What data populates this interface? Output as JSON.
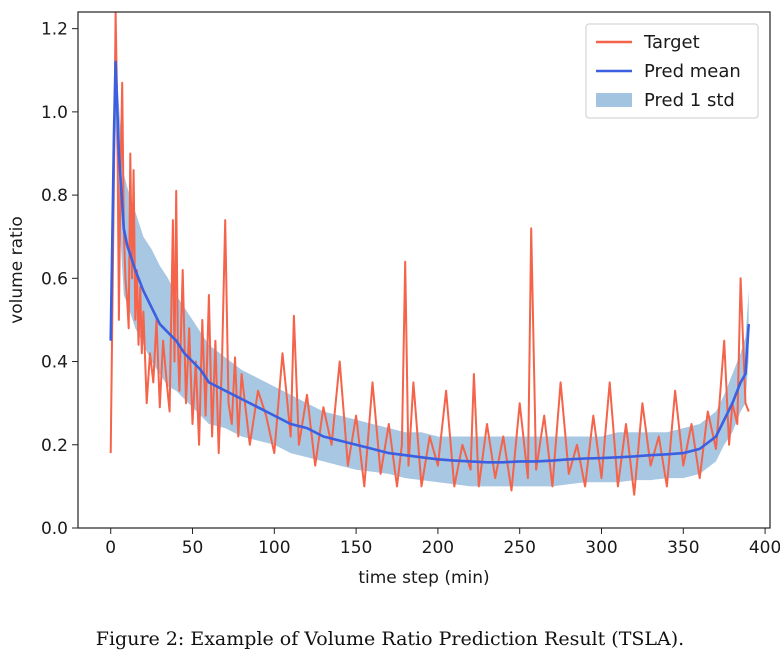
{
  "caption": "Figure 2: Example of Volume Ratio Prediction Result (TSLA).",
  "chart_data": {
    "type": "line",
    "title": "",
    "xlabel": "time step (min)",
    "ylabel": "volume ratio",
    "xlim": [
      -20,
      403
    ],
    "ylim": [
      0,
      1.24
    ],
    "xticks": [
      0,
      50,
      100,
      150,
      200,
      250,
      300,
      350,
      400
    ],
    "xtick_labels": [
      "0",
      "50",
      "100",
      "150",
      "200",
      "250",
      "300",
      "350",
      "400"
    ],
    "yticks": [
      0.0,
      0.2,
      0.4,
      0.6,
      0.8,
      1.0,
      1.2
    ],
    "ytick_labels": [
      "0.0",
      "0.2",
      "0.4",
      "0.6",
      "0.8",
      "1.0",
      "1.2"
    ],
    "legend_position": "top-right",
    "colors": {
      "target": "#f4634a",
      "pred_mean": "#3b5fe0",
      "pred_std": "#a3c4e0"
    },
    "series": [
      {
        "name": "Target",
        "kind": "line",
        "x": [
          0,
          2,
          3,
          4,
          5,
          6,
          7,
          8,
          9,
          10,
          11,
          12,
          13,
          14,
          15,
          16,
          17,
          18,
          19,
          20,
          22,
          24,
          26,
          28,
          30,
          32,
          34,
          36,
          38,
          39,
          40,
          41,
          42,
          44,
          46,
          48,
          50,
          52,
          54,
          56,
          58,
          60,
          62,
          64,
          66,
          68,
          70,
          72,
          74,
          76,
          78,
          80,
          85,
          90,
          95,
          100,
          105,
          110,
          112,
          115,
          120,
          125,
          130,
          135,
          140,
          145,
          150,
          155,
          160,
          165,
          170,
          175,
          178,
          180,
          182,
          185,
          190,
          195,
          200,
          205,
          210,
          215,
          220,
          222,
          225,
          230,
          235,
          240,
          245,
          250,
          255,
          257,
          260,
          265,
          270,
          275,
          280,
          285,
          290,
          295,
          300,
          305,
          310,
          315,
          320,
          325,
          330,
          335,
          340,
          345,
          350,
          355,
          360,
          365,
          370,
          375,
          378,
          380,
          383,
          385,
          388,
          390
        ],
        "values": [
          0.18,
          0.85,
          1.24,
          1.0,
          0.5,
          0.85,
          1.07,
          0.72,
          0.6,
          0.55,
          0.48,
          0.9,
          0.6,
          0.86,
          0.5,
          0.62,
          0.44,
          0.58,
          0.42,
          0.52,
          0.3,
          0.42,
          0.35,
          0.5,
          0.29,
          0.45,
          0.36,
          0.28,
          0.74,
          0.4,
          0.81,
          0.45,
          0.33,
          0.62,
          0.3,
          0.48,
          0.25,
          0.4,
          0.2,
          0.5,
          0.27,
          0.56,
          0.22,
          0.45,
          0.18,
          0.4,
          0.74,
          0.3,
          0.25,
          0.41,
          0.22,
          0.37,
          0.2,
          0.33,
          0.27,
          0.18,
          0.42,
          0.22,
          0.51,
          0.2,
          0.32,
          0.15,
          0.29,
          0.2,
          0.4,
          0.15,
          0.27,
          0.1,
          0.35,
          0.13,
          0.25,
          0.1,
          0.2,
          0.64,
          0.15,
          0.35,
          0.1,
          0.22,
          0.15,
          0.33,
          0.1,
          0.2,
          0.14,
          0.37,
          0.1,
          0.25,
          0.12,
          0.22,
          0.09,
          0.3,
          0.12,
          0.72,
          0.14,
          0.27,
          0.1,
          0.35,
          0.13,
          0.2,
          0.1,
          0.27,
          0.12,
          0.35,
          0.1,
          0.25,
          0.08,
          0.3,
          0.15,
          0.22,
          0.1,
          0.33,
          0.15,
          0.25,
          0.12,
          0.28,
          0.19,
          0.45,
          0.2,
          0.3,
          0.25,
          0.6,
          0.3,
          0.28
        ]
      },
      {
        "name": "Pred mean",
        "kind": "line",
        "x": [
          0,
          2,
          3,
          5,
          8,
          10,
          15,
          20,
          25,
          30,
          35,
          40,
          45,
          50,
          55,
          60,
          70,
          80,
          90,
          100,
          110,
          120,
          130,
          140,
          150,
          160,
          170,
          180,
          190,
          200,
          210,
          220,
          230,
          240,
          250,
          260,
          270,
          280,
          290,
          300,
          310,
          320,
          330,
          340,
          350,
          360,
          370,
          375,
          380,
          385,
          388,
          390
        ],
        "values": [
          0.45,
          0.95,
          1.12,
          0.9,
          0.72,
          0.68,
          0.62,
          0.57,
          0.53,
          0.49,
          0.47,
          0.45,
          0.42,
          0.4,
          0.38,
          0.35,
          0.33,
          0.31,
          0.29,
          0.27,
          0.25,
          0.24,
          0.22,
          0.21,
          0.2,
          0.19,
          0.18,
          0.175,
          0.17,
          0.165,
          0.162,
          0.16,
          0.158,
          0.158,
          0.16,
          0.16,
          0.162,
          0.165,
          0.167,
          0.168,
          0.17,
          0.172,
          0.175,
          0.177,
          0.18,
          0.19,
          0.22,
          0.26,
          0.3,
          0.35,
          0.37,
          0.49
        ]
      },
      {
        "name": "Pred 1 std",
        "kind": "band",
        "x": [
          0,
          2,
          3,
          5,
          8,
          10,
          15,
          20,
          25,
          30,
          35,
          40,
          45,
          50,
          55,
          60,
          70,
          80,
          90,
          100,
          110,
          120,
          130,
          140,
          150,
          160,
          170,
          180,
          190,
          200,
          210,
          220,
          230,
          240,
          250,
          260,
          270,
          280,
          290,
          300,
          310,
          320,
          330,
          340,
          350,
          360,
          370,
          375,
          380,
          385,
          388,
          390
        ],
        "upper": [
          0.47,
          1.02,
          1.14,
          1.02,
          0.85,
          0.82,
          0.76,
          0.7,
          0.67,
          0.63,
          0.6,
          0.56,
          0.53,
          0.5,
          0.47,
          0.44,
          0.41,
          0.38,
          0.36,
          0.34,
          0.32,
          0.3,
          0.28,
          0.27,
          0.26,
          0.25,
          0.24,
          0.23,
          0.23,
          0.22,
          0.22,
          0.22,
          0.22,
          0.22,
          0.22,
          0.22,
          0.22,
          0.22,
          0.22,
          0.22,
          0.23,
          0.23,
          0.23,
          0.23,
          0.24,
          0.25,
          0.28,
          0.32,
          0.37,
          0.42,
          0.46,
          0.57
        ],
        "lower": [
          0.43,
          0.82,
          0.96,
          0.76,
          0.56,
          0.54,
          0.48,
          0.44,
          0.4,
          0.37,
          0.34,
          0.33,
          0.31,
          0.29,
          0.27,
          0.25,
          0.24,
          0.22,
          0.21,
          0.2,
          0.18,
          0.17,
          0.16,
          0.15,
          0.14,
          0.135,
          0.13,
          0.12,
          0.115,
          0.11,
          0.105,
          0.1,
          0.1,
          0.1,
          0.1,
          0.1,
          0.1,
          0.105,
          0.11,
          0.11,
          0.11,
          0.115,
          0.115,
          0.12,
          0.12,
          0.13,
          0.16,
          0.2,
          0.23,
          0.28,
          0.3,
          0.41
        ]
      }
    ]
  }
}
